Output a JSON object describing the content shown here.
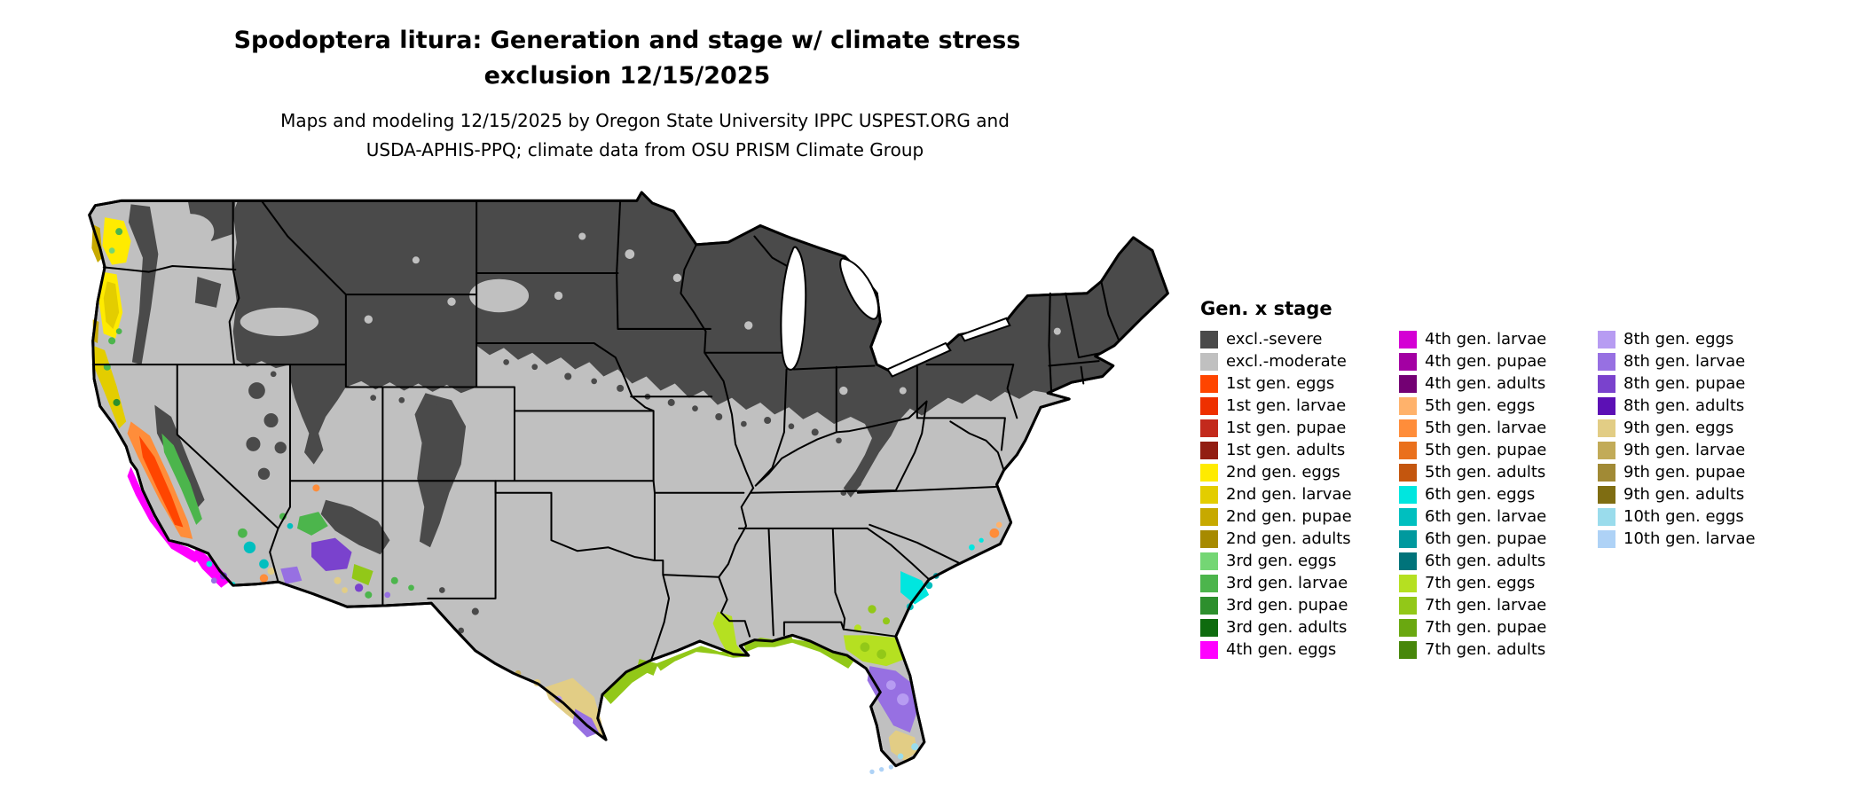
{
  "title": {
    "line1": "Spodoptera litura: Generation and stage w/ climate stress",
    "line2": "exclusion 12/15/2025"
  },
  "subtitle": {
    "line1": "Maps and modeling 12/15/2025 by Oregon State University IPPC USPEST.ORG and",
    "line2": "USDA-APHIS-PPQ; climate data from OSU PRISM Climate Group"
  },
  "legend": {
    "title": "Gen. x stage",
    "columns": [
      {
        "entries": [
          {
            "label": "excl.-severe",
            "color": "#4a4a4a"
          },
          {
            "label": "excl.-moderate",
            "color": "#c0c0c0"
          },
          {
            "label": "1st gen. eggs",
            "color": "#ff4500"
          },
          {
            "label": "1st gen. larvae",
            "color": "#ee3000"
          },
          {
            "label": "1st gen. pupae",
            "color": "#c32a1c"
          },
          {
            "label": "1st gen. adults",
            "color": "#921d12"
          },
          {
            "label": "2nd gen. eggs",
            "color": "#ffeb00"
          },
          {
            "label": "2nd gen. larvae",
            "color": "#e3cd00"
          },
          {
            "label": "2nd gen. pupae",
            "color": "#c7a900"
          },
          {
            "label": "2nd gen. adults",
            "color": "#a78a00"
          },
          {
            "label": "3rd gen. eggs",
            "color": "#74d674"
          },
          {
            "label": "3rd gen. larvae",
            "color": "#4cb54c"
          },
          {
            "label": "3rd gen. pupae",
            "color": "#2d8f2d"
          },
          {
            "label": "3rd gen. adults",
            "color": "#0e6b0e"
          },
          {
            "label": "4th gen. eggs",
            "color": "#ff00ff"
          }
        ]
      },
      {
        "entries": [
          {
            "label": "4th gen. larvae",
            "color": "#d400d4"
          },
          {
            "label": "4th gen. pupae",
            "color": "#a300a3"
          },
          {
            "label": "4th gen. adults",
            "color": "#730073"
          },
          {
            "label": "5th gen. eggs",
            "color": "#ffb26b"
          },
          {
            "label": "5th gen. larvae",
            "color": "#ff8d3a"
          },
          {
            "label": "5th gen. pupae",
            "color": "#ea701c"
          },
          {
            "label": "5th gen. adults",
            "color": "#c4560e"
          },
          {
            "label": "6th gen. eggs",
            "color": "#00e6df"
          },
          {
            "label": "6th gen. larvae",
            "color": "#00bfbf"
          },
          {
            "label": "6th gen. pupae",
            "color": "#00999e"
          },
          {
            "label": "6th gen. adults",
            "color": "#00737a"
          },
          {
            "label": "7th gen. eggs",
            "color": "#b5e021"
          },
          {
            "label": "7th gen. larvae",
            "color": "#92c818"
          },
          {
            "label": "7th gen. pupae",
            "color": "#6aa810"
          },
          {
            "label": "7th gen. adults",
            "color": "#47870b"
          }
        ]
      },
      {
        "entries": [
          {
            "label": "8th gen. eggs",
            "color": "#b79cf2"
          },
          {
            "label": "8th gen. larvae",
            "color": "#9770e2"
          },
          {
            "label": "8th gen. pupae",
            "color": "#7a42cd"
          },
          {
            "label": "8th gen. adults",
            "color": "#5c10b5"
          },
          {
            "label": "9th gen. eggs",
            "color": "#e2cd85"
          },
          {
            "label": "9th gen. larvae",
            "color": "#c2ab58"
          },
          {
            "label": "9th gen. pupae",
            "color": "#a18a35"
          },
          {
            "label": "9th gen. adults",
            "color": "#7f6d12"
          },
          {
            "label": "10th gen. eggs",
            "color": "#9adcec"
          },
          {
            "label": "10th gen. larvae",
            "color": "#aed2f6"
          }
        ]
      }
    ]
  },
  "palette": {
    "excl_severe": "#4a4a4a",
    "excl_moderate": "#c0c0c0",
    "g1_eggs": "#ff4500",
    "g1_larvae": "#ee3000",
    "g1_pupae": "#c32a1c",
    "g1_adults": "#921d12",
    "g2_eggs": "#ffeb00",
    "g2_larvae": "#e3cd00",
    "g2_pupae": "#c7a900",
    "g2_adults": "#a78a00",
    "g3_eggs": "#74d674",
    "g3_larvae": "#4cb54c",
    "g3_pupae": "#2d8f2d",
    "g3_adults": "#0e6b0e",
    "g4_eggs": "#ff00ff",
    "g4_larvae": "#d400d4",
    "g4_pupae": "#a300a3",
    "g4_adults": "#730073",
    "g5_eggs": "#ffb26b",
    "g5_larvae": "#ff8d3a",
    "g5_pupae": "#ea701c",
    "g5_adults": "#c4560e",
    "g6_eggs": "#00e6df",
    "g6_larvae": "#00bfbf",
    "g6_pupae": "#00999e",
    "g6_adults": "#00737a",
    "g7_eggs": "#b5e021",
    "g7_larvae": "#92c818",
    "g7_pupae": "#6aa810",
    "g7_adults": "#47870b",
    "g8_eggs": "#b79cf2",
    "g8_larvae": "#9770e2",
    "g8_pupae": "#7a42cd",
    "g8_adults": "#5c10b5",
    "g9_eggs": "#e2cd85",
    "g9_larvae": "#c2ab58",
    "g9_pupae": "#a18a35",
    "g9_adults": "#7f6d12",
    "g10_eggs": "#9adcec",
    "g10_larvae": "#aed2f6",
    "water": "#ffffff",
    "border": "#000000"
  }
}
